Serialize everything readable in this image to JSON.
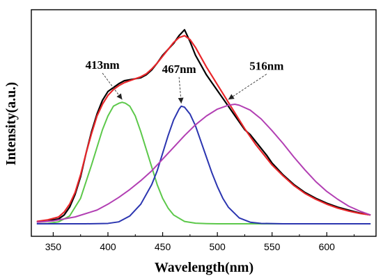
{
  "chart_data": {
    "type": "line",
    "title": "",
    "xlabel": "Wavelength(nm)",
    "ylabel": "Intensity(a.u.)",
    "xlim": [
      330,
      645
    ],
    "ylim": [
      0,
      1.0
    ],
    "x_ticks": [
      350,
      400,
      450,
      500,
      550,
      600,
      650
    ],
    "grid": false,
    "legend": "none",
    "series": [
      {
        "color": "#000000",
        "x": [
          335,
          345,
          355,
          360,
          365,
          370,
          375,
          380,
          385,
          390,
          395,
          400,
          405,
          410,
          415,
          420,
          425,
          430,
          435,
          440,
          445,
          450,
          455,
          460,
          465,
          470,
          475,
          480,
          485,
          490,
          495,
          500,
          505,
          510,
          515,
          520,
          525,
          530,
          535,
          540,
          545,
          550,
          560,
          570,
          580,
          590,
          600,
          610,
          620,
          630,
          640
        ],
        "y": [
          0.01,
          0.015,
          0.025,
          0.045,
          0.085,
          0.15,
          0.24,
          0.36,
          0.47,
          0.56,
          0.63,
          0.675,
          0.695,
          0.715,
          0.73,
          0.735,
          0.74,
          0.745,
          0.76,
          0.785,
          0.82,
          0.86,
          0.89,
          0.92,
          0.96,
          0.99,
          0.93,
          0.86,
          0.81,
          0.76,
          0.72,
          0.68,
          0.64,
          0.6,
          0.56,
          0.52,
          0.48,
          0.455,
          0.42,
          0.385,
          0.35,
          0.31,
          0.25,
          0.2,
          0.16,
          0.13,
          0.105,
          0.085,
          0.07,
          0.055,
          0.045
        ]
      },
      {
        "color": "#e8262a",
        "x": [
          335,
          345,
          355,
          360,
          365,
          370,
          375,
          380,
          385,
          390,
          395,
          400,
          405,
          410,
          415,
          420,
          425,
          430,
          435,
          440,
          445,
          450,
          455,
          460,
          465,
          470,
          475,
          480,
          485,
          490,
          495,
          500,
          505,
          510,
          515,
          520,
          525,
          530,
          535,
          540,
          545,
          550,
          560,
          570,
          580,
          590,
          600,
          610,
          620,
          630,
          640
        ],
        "y": [
          0.012,
          0.02,
          0.035,
          0.06,
          0.1,
          0.16,
          0.25,
          0.36,
          0.46,
          0.55,
          0.61,
          0.655,
          0.685,
          0.705,
          0.72,
          0.73,
          0.74,
          0.75,
          0.765,
          0.79,
          0.82,
          0.855,
          0.89,
          0.925,
          0.95,
          0.96,
          0.94,
          0.9,
          0.85,
          0.8,
          0.755,
          0.71,
          0.665,
          0.62,
          0.575,
          0.53,
          0.485,
          0.445,
          0.405,
          0.37,
          0.335,
          0.3,
          0.245,
          0.195,
          0.155,
          0.125,
          0.1,
          0.08,
          0.065,
          0.053,
          0.045
        ]
      },
      {
        "color": "#5cc84a",
        "x": [
          335,
          345,
          355,
          365,
          375,
          385,
          395,
          400,
          405,
          410,
          413,
          416,
          420,
          425,
          430,
          435,
          440,
          445,
          450,
          455,
          460,
          470,
          480,
          490,
          500,
          520,
          550,
          600,
          640
        ],
        "y": [
          0.0,
          0.002,
          0.01,
          0.04,
          0.13,
          0.3,
          0.48,
          0.55,
          0.6,
          0.615,
          0.62,
          0.615,
          0.6,
          0.55,
          0.47,
          0.38,
          0.29,
          0.2,
          0.13,
          0.08,
          0.045,
          0.012,
          0.003,
          0.001,
          0.0,
          0.0,
          0.0,
          0.0,
          0.0
        ]
      },
      {
        "color": "#2b35b0",
        "x": [
          335,
          380,
          400,
          410,
          420,
          430,
          440,
          445,
          450,
          455,
          460,
          465,
          467,
          470,
          475,
          480,
          485,
          490,
          495,
          500,
          505,
          510,
          520,
          530,
          540,
          560,
          600,
          640
        ],
        "y": [
          0.0,
          0.0,
          0.002,
          0.01,
          0.04,
          0.1,
          0.2,
          0.27,
          0.36,
          0.45,
          0.53,
          0.585,
          0.6,
          0.595,
          0.56,
          0.5,
          0.42,
          0.34,
          0.26,
          0.19,
          0.13,
          0.085,
          0.03,
          0.008,
          0.002,
          0.0,
          0.0,
          0.0
        ]
      },
      {
        "color": "#b23fb3",
        "x": [
          335,
          350,
          370,
          390,
          400,
          410,
          420,
          430,
          440,
          450,
          460,
          470,
          480,
          490,
          500,
          510,
          516,
          520,
          530,
          540,
          550,
          560,
          570,
          580,
          590,
          600,
          610,
          620,
          630,
          640
        ],
        "y": [
          0.008,
          0.015,
          0.035,
          0.07,
          0.1,
          0.135,
          0.175,
          0.22,
          0.27,
          0.33,
          0.39,
          0.45,
          0.505,
          0.55,
          0.585,
          0.605,
          0.61,
          0.605,
          0.58,
          0.535,
          0.475,
          0.41,
          0.34,
          0.275,
          0.215,
          0.165,
          0.125,
          0.09,
          0.065,
          0.045
        ]
      }
    ],
    "annotations": [
      {
        "text": "413nm",
        "x": 413,
        "y": 0.62,
        "label_x": 395,
        "label_y": 0.79
      },
      {
        "text": "467nm",
        "x": 467,
        "y": 0.6,
        "label_x": 465,
        "label_y": 0.77
      },
      {
        "text": "516nm",
        "x": 510,
        "y": 0.62,
        "label_x": 545,
        "label_y": 0.785
      }
    ]
  }
}
